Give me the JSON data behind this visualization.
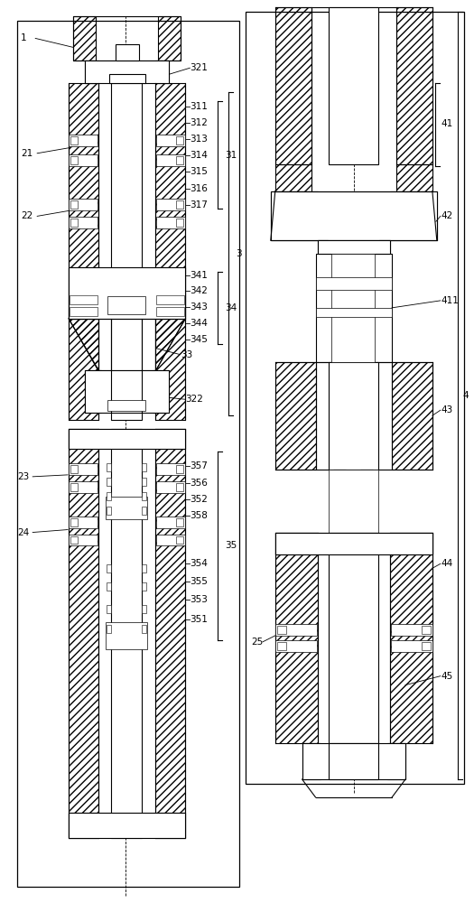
{
  "bg_color": "#ffffff",
  "line_color": "#000000",
  "figsize": [
    5.25,
    10.0
  ],
  "dpi": 100
}
